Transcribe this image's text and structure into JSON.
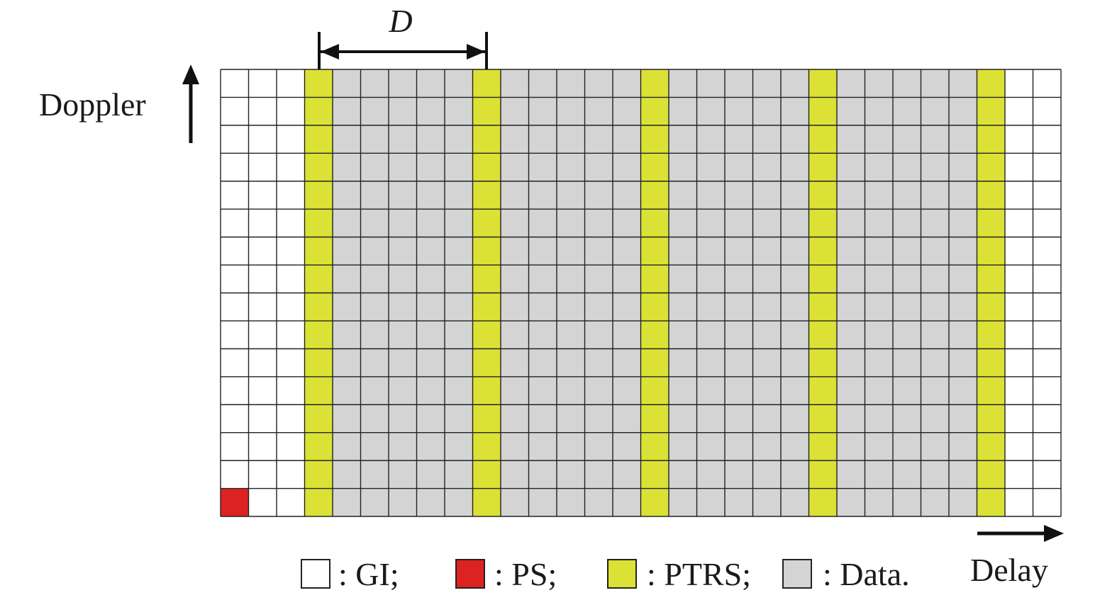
{
  "diagram": {
    "spacing_label": "D",
    "axis_doppler": "Doppler",
    "axis_delay": "Delay",
    "grid": {
      "rows": 16,
      "cols": 30,
      "pilot_columns": [
        3,
        9,
        15,
        21,
        27
      ],
      "guard_columns_left": [
        0,
        1,
        2
      ],
      "guard_columns_right": [
        28,
        29
      ],
      "pilot_symbol": {
        "row_from_bottom": 0,
        "col": 0
      }
    },
    "colors": {
      "GI": "#ffffff",
      "PS": "#dd2222",
      "PTRS": "#dbe235",
      "Data": "#d4d4d4",
      "grid_line": "#222222"
    },
    "legend": [
      {
        "key": "GI",
        "text": ": GI;"
      },
      {
        "key": "PS",
        "text": ": PS;"
      },
      {
        "key": "PTRS",
        "text": ": PTRS;"
      },
      {
        "key": "Data",
        "text": ": Data."
      }
    ]
  }
}
